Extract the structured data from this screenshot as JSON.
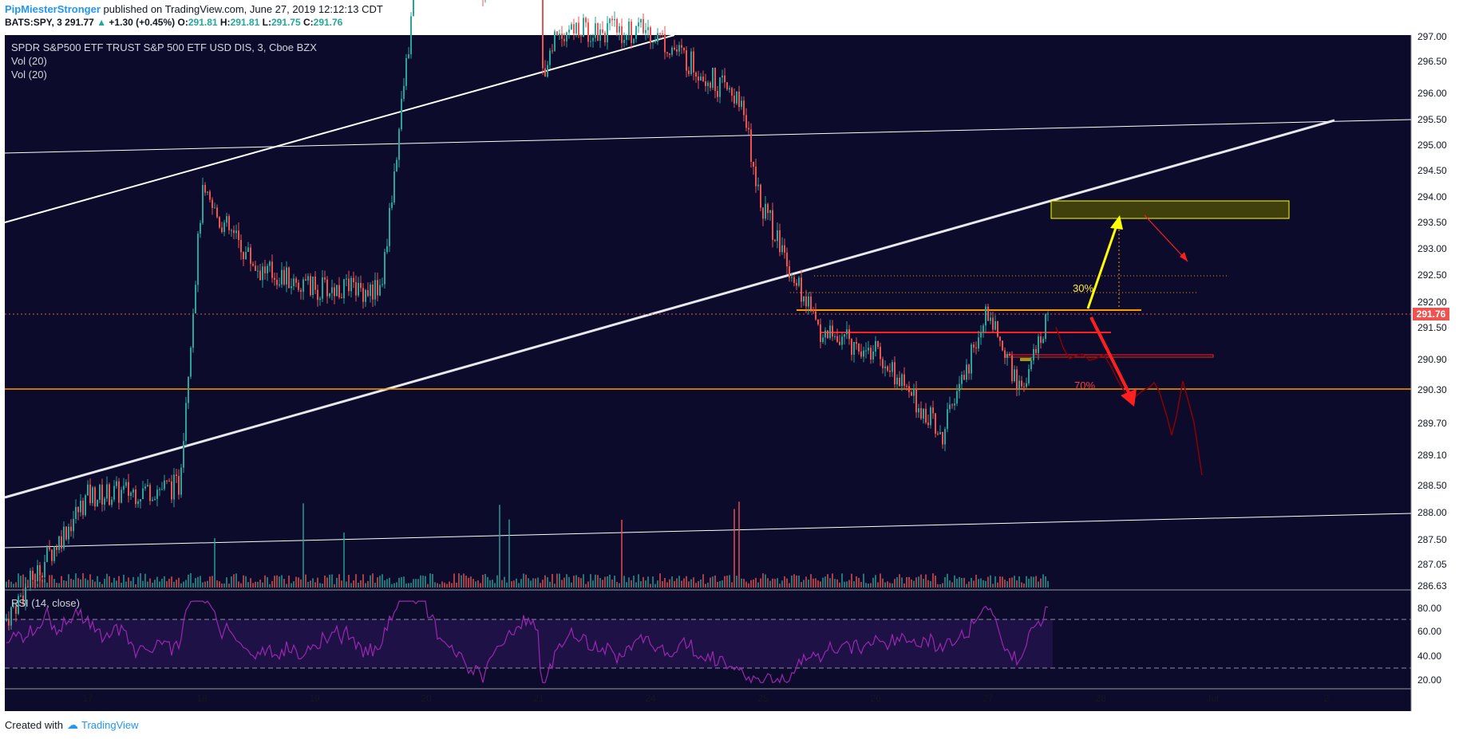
{
  "header": {
    "author": "PipMiesterStronger",
    "published": "published on TradingView.com, June 27, 2019 12:12:13 CDT",
    "symbol": "BATS:SPY, 3",
    "last": "291.77",
    "change": "+1.30 (+0.45%)",
    "o_label": "O:",
    "o": "291.81",
    "h_label": "H:",
    "h": "291.81",
    "l_label": "L:",
    "l": "291.75",
    "c_label": "C:",
    "c": "291.76"
  },
  "legend": {
    "title": "SPDR S&P500 ETF TRUST S&P 500 ETF USD DIS, 3, Cboe BZX",
    "vol1": "Vol (20)",
    "vol2": "Vol (20)",
    "rsi": "RSI (14, close)"
  },
  "footer": {
    "created": "Created with",
    "brand": "TradingView"
  },
  "colors": {
    "background": "#0c0b2b",
    "up": "#26a69a",
    "down": "#ef5350",
    "orange": "#ff9800",
    "red": "#ff1f1f",
    "yellow": "#ffff00",
    "rsi": "#9c27b0",
    "price_tag": "#ef5350"
  },
  "chart_data": {
    "type": "candlestick",
    "price_axis_ticks": [
      "297.00",
      "296.50",
      "296.00",
      "295.50",
      "295.00",
      "294.50",
      "294.00",
      "293.50",
      "293.00",
      "292.50",
      "292.00",
      "291.50",
      "290.90",
      "290.30",
      "289.70",
      "289.10",
      "288.50",
      "288.00",
      "287.50",
      "287.05",
      "286.63"
    ],
    "last_price_tag": "291.76",
    "x_ticks": [
      "17",
      "18",
      "19",
      "20",
      "21",
      "24",
      "25",
      "26",
      "27",
      "28",
      "Jul",
      "2"
    ],
    "rsi_ticks": [
      "80.00",
      "60.00",
      "40.00",
      "20.00"
    ],
    "rsi_bands": [
      70,
      30
    ],
    "annotations": {
      "pct_up": "30%",
      "pct_down": "70%"
    },
    "horizontal_levels": [
      {
        "price": 291.76,
        "color": "#ef5350",
        "style": "dotted"
      },
      {
        "price": 290.33,
        "color": "#ff9800",
        "style": "solid"
      }
    ],
    "session_anchors": [
      {
        "label": "16",
        "price": 288.8
      },
      {
        "label": "17",
        "price": 290.0
      },
      {
        "label": "17.8",
        "price": 290.1
      },
      {
        "label": "18",
        "price": 292.9
      },
      {
        "label": "18.5",
        "price": 292.2
      },
      {
        "label": "19",
        "price": 292.0
      },
      {
        "label": "19.6",
        "price": 292.0
      },
      {
        "label": "20",
        "price": 295.9
      },
      {
        "label": "20.5",
        "price": 294.9
      },
      {
        "label": "21",
        "price": 296.1
      },
      {
        "label": "21.1",
        "price": 294.1
      },
      {
        "label": "21.5",
        "price": 294.5
      },
      {
        "label": "24",
        "price": 294.5
      },
      {
        "label": "24.8",
        "price": 293.8
      },
      {
        "label": "25",
        "price": 292.8
      },
      {
        "label": "25.5",
        "price": 291.6
      },
      {
        "label": "26",
        "price": 291.4
      },
      {
        "label": "26.6",
        "price": 290.6
      },
      {
        "label": "27",
        "price": 291.8
      },
      {
        "label": "27.3",
        "price": 291.0
      },
      {
        "label": "27.55",
        "price": 291.77
      }
    ]
  }
}
